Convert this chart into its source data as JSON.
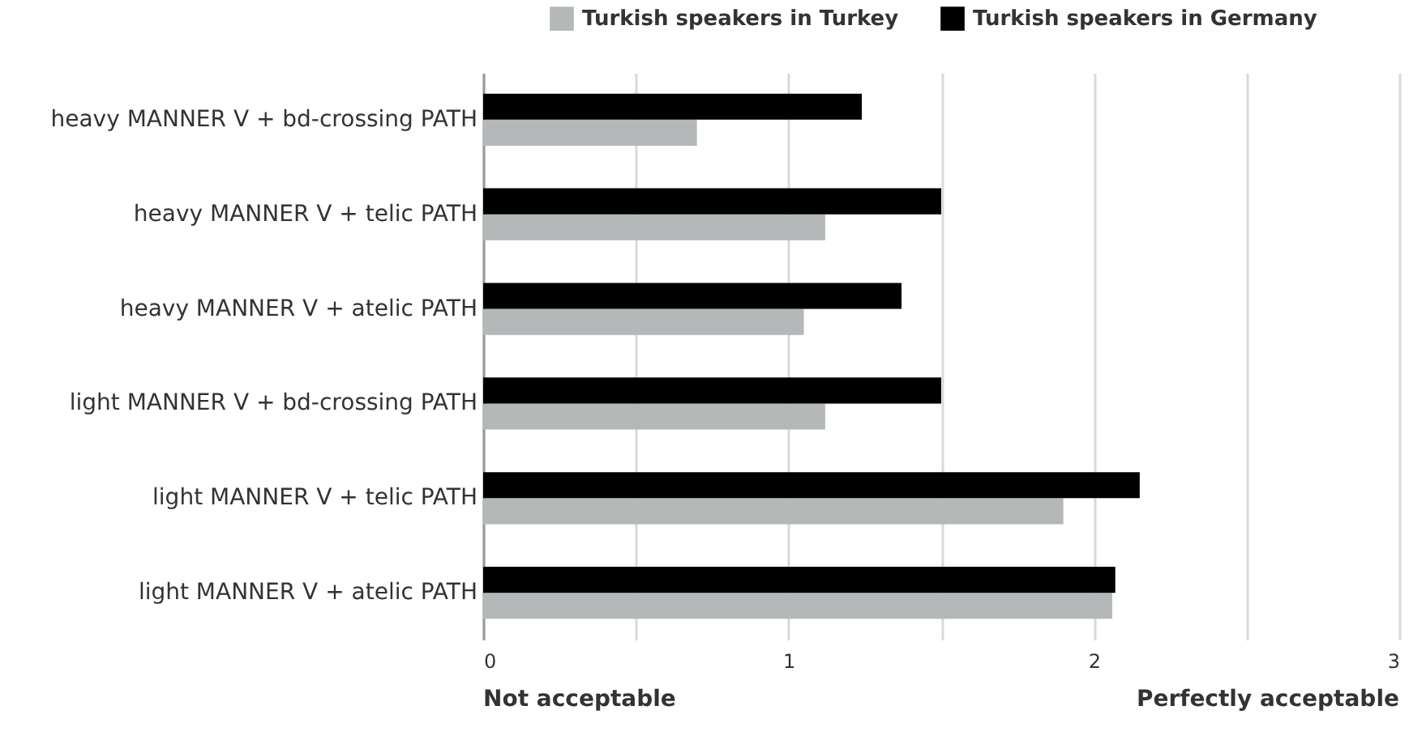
{
  "chart_data": {
    "type": "bar",
    "orientation": "horizontal",
    "categories": [
      "heavy MANNER V + bd-crossing PATH",
      "heavy MANNER V + telic PATH",
      "heavy MANNER V + atelic PATH",
      "light MANNER V + bd-crossing PATH",
      "light MANNER V + telic PATH",
      "light MANNER V + atelic PATH"
    ],
    "series": [
      {
        "name": "Turkish speakers in Turkey",
        "color": "#b5b8b8",
        "values": [
          0.7,
          1.12,
          1.05,
          1.12,
          1.9,
          2.06
        ]
      },
      {
        "name": "Turkish speakers in Germany",
        "color": "#000000",
        "values": [
          1.24,
          1.5,
          1.37,
          1.5,
          2.15,
          2.07
        ]
      }
    ],
    "xlim": [
      0,
      3
    ],
    "xticks": [
      0,
      {
        "value": 0.5,
        "label": null
      },
      1,
      {
        "value": 1.5,
        "label": null
      },
      2,
      {
        "value": 2.5,
        "label": null
      },
      3
    ],
    "grid": "x",
    "legend": "top",
    "annotations": [
      "Not acceptable",
      "Perfectly acceptable"
    ]
  }
}
